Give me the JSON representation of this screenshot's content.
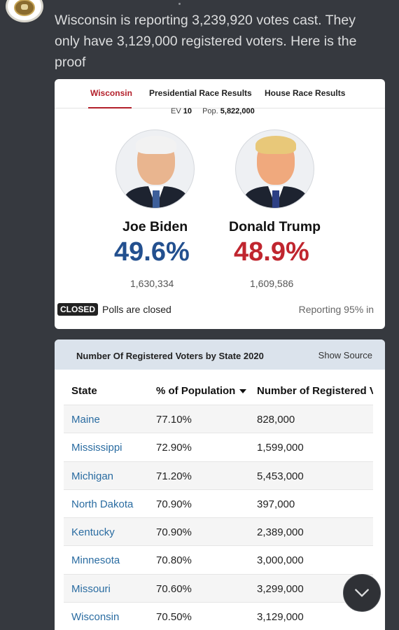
{
  "post": {
    "text": "Wisconsin is reporting 3,239,920 votes cast. They only have 3,129,000 registered voters. Here is the proof"
  },
  "election_card": {
    "tabs": [
      "Wisconsin",
      "Presidential Race Results",
      "House Race Results"
    ],
    "ev_label": "EV",
    "ev_value": "10",
    "pop_label": "Pop.",
    "pop_value": "5,822,000",
    "candidates": [
      {
        "name": "Joe Biden",
        "percent": "49.6%",
        "votes": "1,630,334",
        "color": "#23508f"
      },
      {
        "name": "Donald Trump",
        "percent": "48.9%",
        "votes": "1,609,586",
        "color": "#c0262f"
      }
    ],
    "status_badge": "CLOSED",
    "status_text": "Polls are closed",
    "reporting": "Reporting 95% in"
  },
  "voters_card": {
    "title": "Number Of Registered Voters by State 2020",
    "show_source": "Show Source",
    "columns": [
      "State",
      "% of Population",
      "Number of Registered Voters"
    ],
    "rows": [
      {
        "state": "Maine",
        "pct": "77.10%",
        "num": "828,000"
      },
      {
        "state": "Mississippi",
        "pct": "72.90%",
        "num": "1,599,000"
      },
      {
        "state": "Michigan",
        "pct": "71.20%",
        "num": "5,453,000"
      },
      {
        "state": "North Dakota",
        "pct": "70.90%",
        "num": "397,000"
      },
      {
        "state": "Kentucky",
        "pct": "70.90%",
        "num": "2,389,000"
      },
      {
        "state": "Minnesota",
        "pct": "70.80%",
        "num": "3,000,000"
      },
      {
        "state": "Missouri",
        "pct": "70.60%",
        "num": "3,299,000"
      },
      {
        "state": "Wisconsin",
        "pct": "70.50%",
        "num": "3,129,000"
      }
    ]
  },
  "icons": {
    "avatar": "seal-avatar-icon",
    "scroll": "chevron-down-icon"
  },
  "colors": {
    "background": "#36393f",
    "active_tab": "#b3202b",
    "state_link": "#2a6ca1"
  }
}
